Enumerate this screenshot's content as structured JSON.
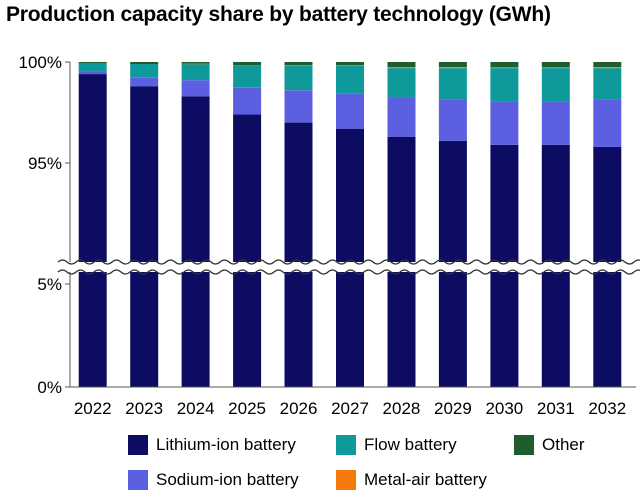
{
  "chart_data": {
    "type": "bar",
    "stacked": true,
    "title": "Production capacity share by battery technology (GWh)",
    "categories": [
      "2022",
      "2023",
      "2024",
      "2025",
      "2026",
      "2027",
      "2028",
      "2029",
      "2030",
      "2031",
      "2032"
    ],
    "series": [
      {
        "name": "Lithium-ion battery",
        "color": "#0c0c63",
        "values": [
          99.4,
          98.8,
          98.3,
          97.4,
          97.0,
          96.7,
          96.3,
          96.1,
          95.9,
          95.9,
          95.8
        ]
      },
      {
        "name": "Sodium-ion battery",
        "color": "#5b5fe0",
        "values": [
          0.15,
          0.45,
          0.8,
          1.35,
          1.6,
          1.75,
          1.95,
          2.05,
          2.15,
          2.15,
          2.35
        ]
      },
      {
        "name": "Flow battery",
        "color": "#0e9a9a",
        "values": [
          0.4,
          0.65,
          0.8,
          1.05,
          1.2,
          1.35,
          1.45,
          1.55,
          1.65,
          1.65,
          1.55
        ]
      },
      {
        "name": "Metal-air battery",
        "color": "#f47b0b",
        "values": [
          0,
          0,
          0.02,
          0.03,
          0.04,
          0.04,
          0.05,
          0.05,
          0.05,
          0.05,
          0.05
        ]
      },
      {
        "name": "Other",
        "color": "#1f5e2c",
        "values": [
          0.05,
          0.1,
          0.08,
          0.17,
          0.16,
          0.16,
          0.25,
          0.25,
          0.25,
          0.25,
          0.25
        ]
      }
    ],
    "yticks": [
      "0%",
      "5%",
      "95%",
      "100%"
    ],
    "axis_break": true,
    "legend_position": "bottom",
    "legend_rows": [
      [
        "Lithium-ion battery",
        "Flow battery",
        "Other"
      ],
      [
        "Sodium-ion battery",
        "Metal-air battery"
      ]
    ]
  }
}
